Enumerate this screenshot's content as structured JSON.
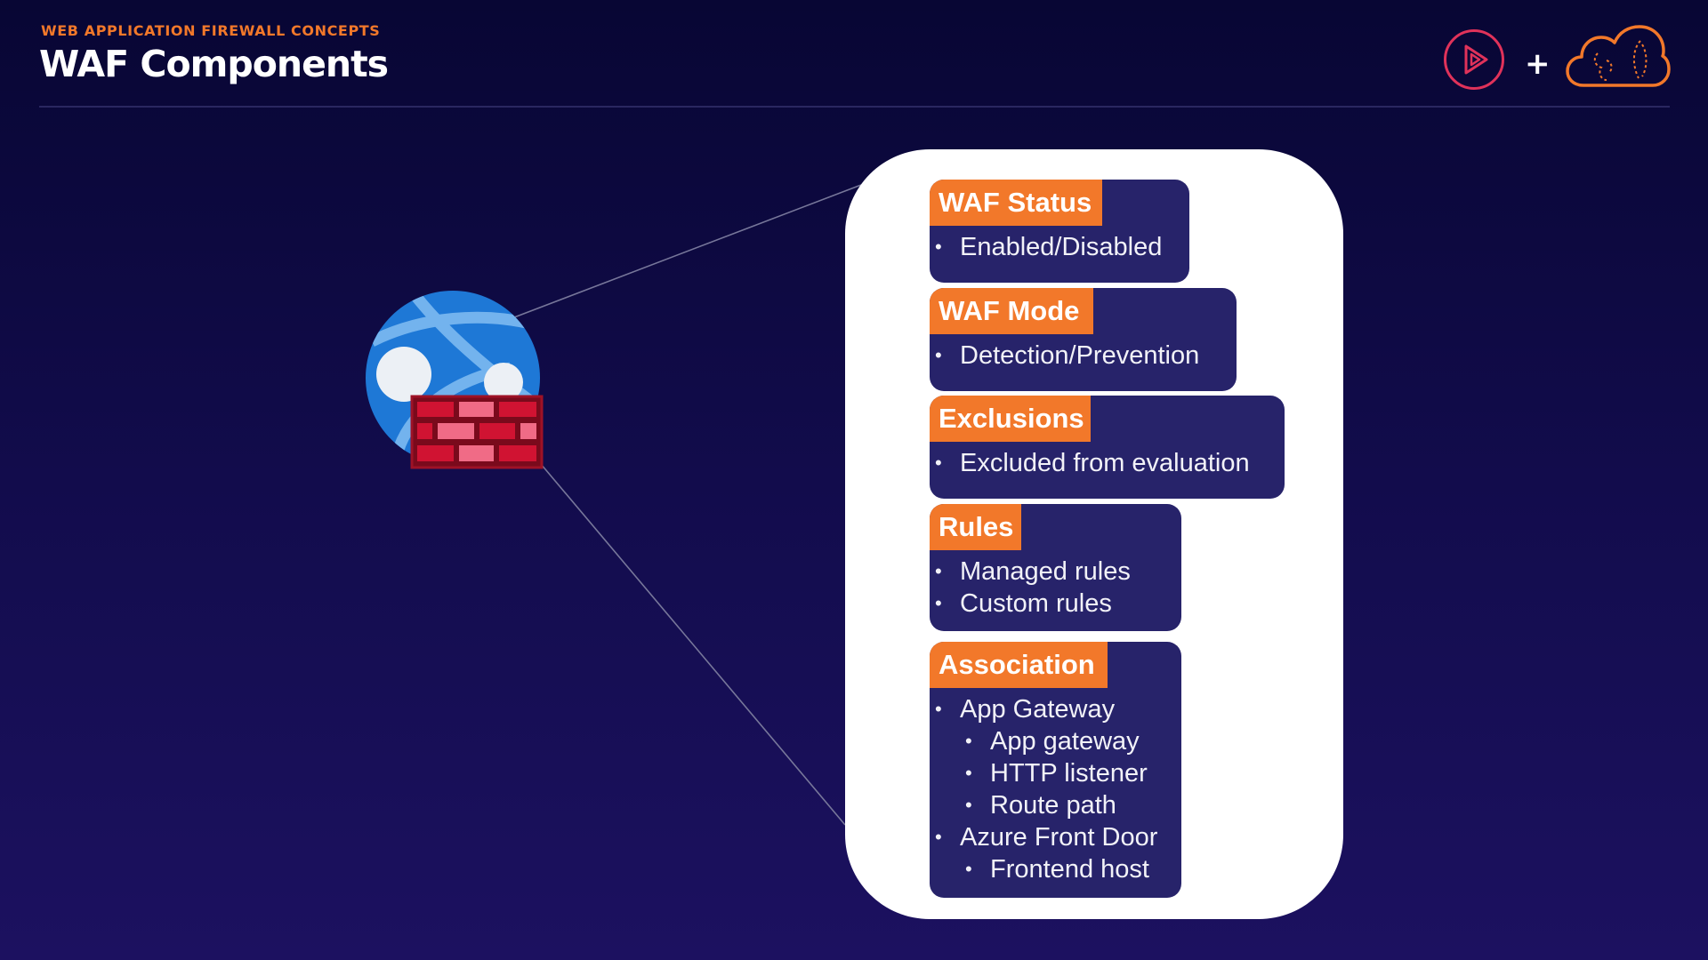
{
  "header": {
    "eyebrow": "WEB APPLICATION FIREWALL CONCEPTS",
    "title": "WAF Components",
    "brand_plus": "+"
  },
  "icons": {
    "brand_left": "play-circle-icon",
    "brand_right": "cloud-icon",
    "main": "globe-firewall-icon"
  },
  "colors": {
    "accent_orange": "#f2782a",
    "card_navy": "#27236a",
    "background_top": "#080634",
    "background_bottom": "#1c1160",
    "panel": "#ffffff",
    "firewall_red": "#c8102e",
    "globe_blue": "#1e78d6"
  },
  "components": [
    {
      "title": "WAF Status",
      "items": [
        {
          "text": "Enabled/Disabled",
          "level": 1
        }
      ]
    },
    {
      "title": "WAF Mode",
      "items": [
        {
          "text": "Detection/Prevention",
          "level": 1
        }
      ]
    },
    {
      "title": "Exclusions",
      "items": [
        {
          "text": "Excluded from evaluation",
          "level": 1
        }
      ]
    },
    {
      "title": "Rules",
      "items": [
        {
          "text": "Managed rules",
          "level": 1
        },
        {
          "text": "Custom rules",
          "level": 1
        }
      ]
    },
    {
      "title": "Association",
      "items": [
        {
          "text": "App Gateway",
          "level": 1
        },
        {
          "text": "App gateway",
          "level": 2
        },
        {
          "text": "HTTP listener",
          "level": 2
        },
        {
          "text": "Route path",
          "level": 2
        },
        {
          "text": "Azure Front Door",
          "level": 1
        },
        {
          "text": "Frontend host",
          "level": 2
        }
      ]
    }
  ]
}
